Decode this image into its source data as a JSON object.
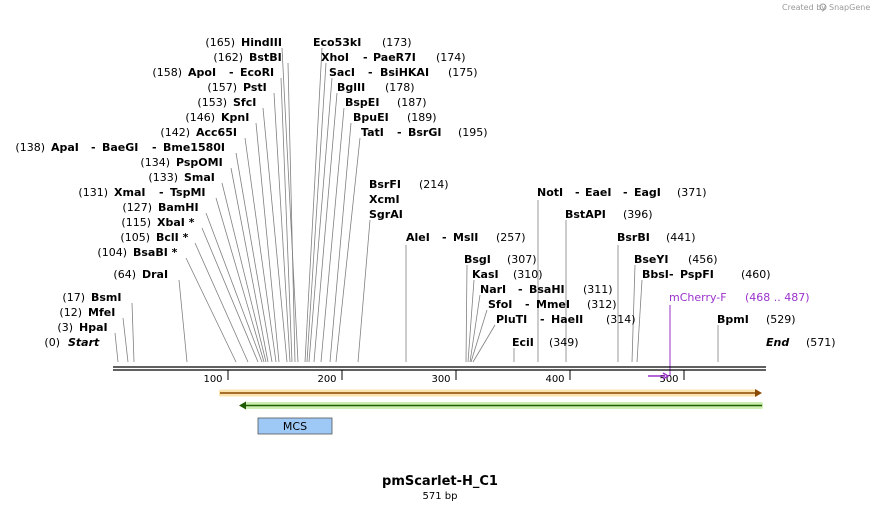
{
  "header": {
    "credit": "Created by",
    "brand": "SnapGene"
  },
  "map": {
    "title": "pmScarlet-H_C1",
    "length_label": "571 bp",
    "start_label": "Start",
    "start_pos": "(0)",
    "end_label": "End",
    "end_pos": "(571)",
    "ticks": [
      "100",
      "200",
      "300",
      "400",
      "500"
    ]
  },
  "sites": [
    {
      "pos": "(165)",
      "name": "HindIII"
    },
    {
      "pos": "(162)",
      "name": "BstBI"
    },
    {
      "pos": "(158)",
      "name": "ApoI",
      "name2": "EcoRI"
    },
    {
      "pos": "(157)",
      "name": "PstI"
    },
    {
      "pos": "(153)",
      "name": "SfcI"
    },
    {
      "pos": "(146)",
      "name": "KpnI"
    },
    {
      "pos": "(142)",
      "name": "Acc65I"
    },
    {
      "pos": "(138)",
      "name": "ApaI",
      "name2": "BaeGI",
      "name3": "Bme1580I"
    },
    {
      "pos": "(134)",
      "name": "PspOMI"
    },
    {
      "pos": "(133)",
      "name": "SmaI"
    },
    {
      "pos": "(131)",
      "name": "XmaI",
      "name2": "TspMI"
    },
    {
      "pos": "(127)",
      "name": "BamHI"
    },
    {
      "pos": "(115)",
      "name": "XbaI *"
    },
    {
      "pos": "(105)",
      "name": "BclI *"
    },
    {
      "pos": "(104)",
      "name": "BsaBI *"
    },
    {
      "pos": "(64)",
      "name": "DraI"
    },
    {
      "pos": "(17)",
      "name": "BsmI"
    },
    {
      "pos": "(12)",
      "name": "MfeI"
    },
    {
      "pos": "(3)",
      "name": "HpaI"
    },
    {
      "pos": "(173)",
      "name": "Eco53kI"
    },
    {
      "pos": "(174)",
      "name": "XhoI",
      "name2": "PaeR7I"
    },
    {
      "pos": "(175)",
      "name": "SacI",
      "name2": "BsiHKAI"
    },
    {
      "pos": "(178)",
      "name": "BglII"
    },
    {
      "pos": "(187)",
      "name": "BspEI"
    },
    {
      "pos": "(189)",
      "name": "BpuEI"
    },
    {
      "pos": "(195)",
      "name": "TatI",
      "name2": "BsrGI"
    },
    {
      "pos": "(214)",
      "name": "BsrFI",
      "name2": "XcmI",
      "name3": "SgrAI"
    },
    {
      "pos": "(257)",
      "name": "AleI",
      "name2": "MslI"
    },
    {
      "pos": "(307)",
      "name": "BsgI"
    },
    {
      "pos": "(310)",
      "name": "KasI"
    },
    {
      "pos": "(311)",
      "name": "NarI",
      "name2": "BsaHI"
    },
    {
      "pos": "(312)",
      "name": "SfoI",
      "name2": "MmeI"
    },
    {
      "pos": "(314)",
      "name": "PluTI",
      "name2": "HaeII"
    },
    {
      "pos": "(349)",
      "name": "EciI"
    },
    {
      "pos": "(371)",
      "name": "NotI",
      "name2": "EaeI",
      "name3": "EagI"
    },
    {
      "pos": "(396)",
      "name": "BstAPI"
    },
    {
      "pos": "(441)",
      "name": "BsrBI"
    },
    {
      "pos": "(456)",
      "name": "BseYI"
    },
    {
      "pos": "(460)",
      "name": "BbsI",
      "name2": "PspFI"
    },
    {
      "pos": "(529)",
      "name": "BpmI"
    }
  ],
  "features": {
    "mcherry": {
      "label": "mCherry-F",
      "range": "(468 .. 487)"
    },
    "mcs": {
      "label": "MCS"
    }
  },
  "colors": {
    "feature_text": "#9a32cd",
    "orange_arrow": "#f0a000",
    "green_arrow": "#2db400",
    "mcs_box": "#9ec9f7"
  }
}
